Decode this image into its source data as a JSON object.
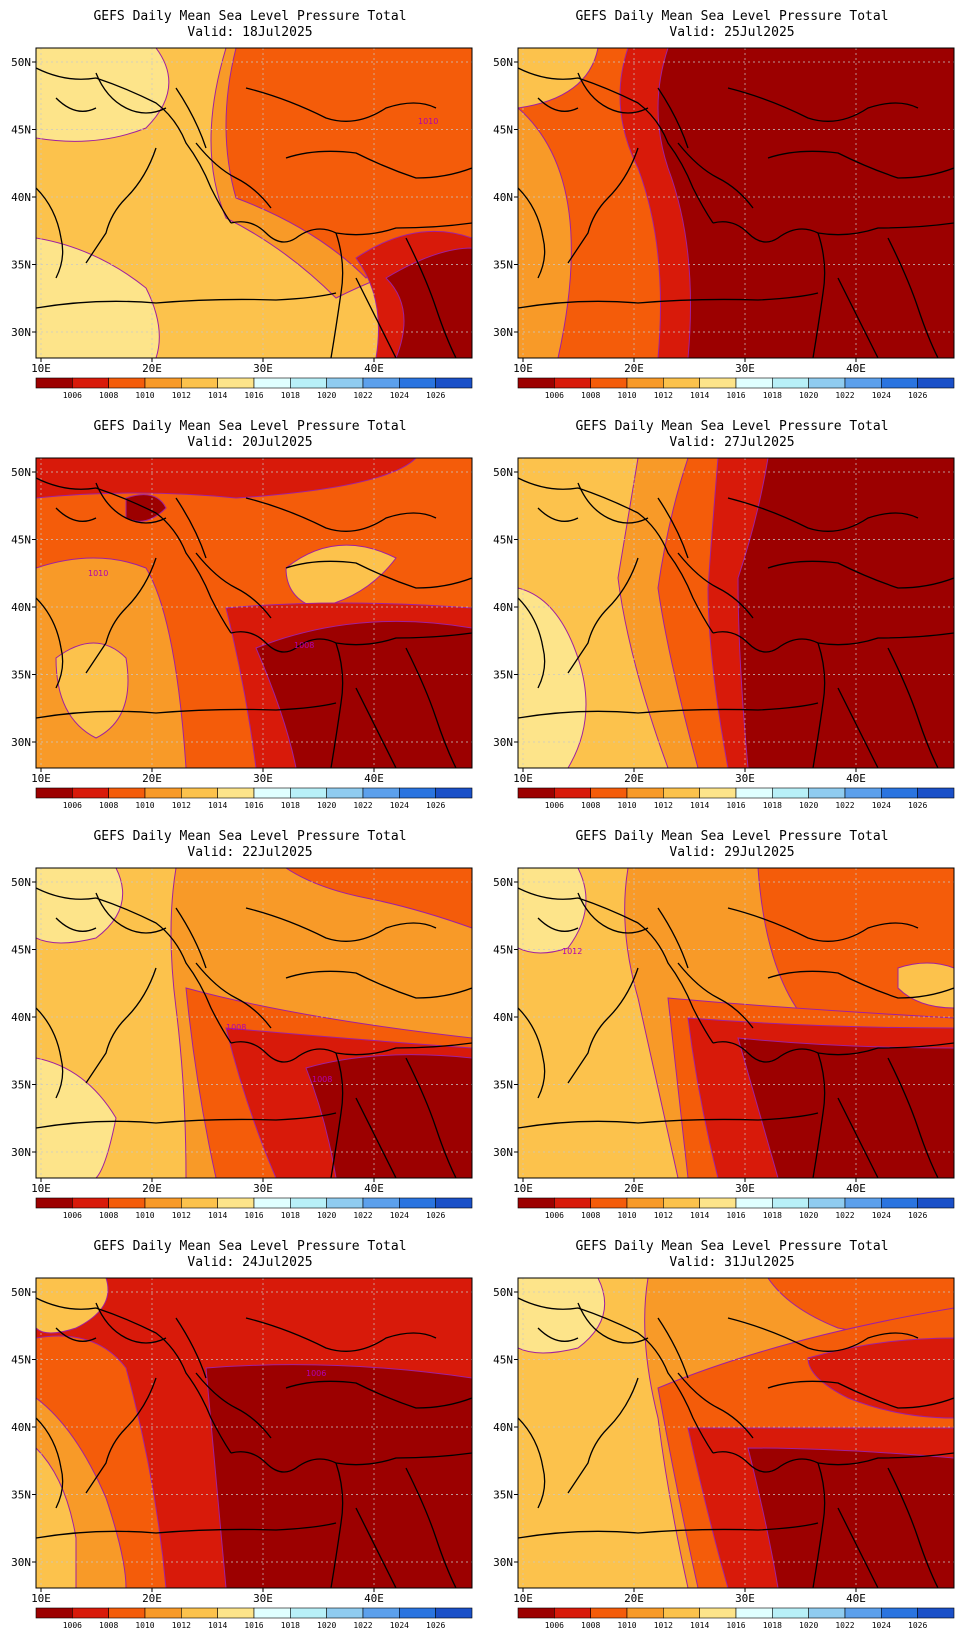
{
  "product": "GEFS Daily Mean Sea Level Pressure Total",
  "valid_prefix": "Valid:",
  "lat_labels": [
    "50N",
    "45N",
    "40N",
    "35N",
    "30N"
  ],
  "lon_labels": [
    "10E",
    "20E",
    "30E",
    "40E"
  ],
  "colorbar": {
    "levels": [
      "1006",
      "1008",
      "1010",
      "1012",
      "1014",
      "1016",
      "1018",
      "1020",
      "1022",
      "1024",
      "1026"
    ],
    "colors": [
      "#9c0000",
      "#d81a0a",
      "#f45c0a",
      "#f89a28",
      "#fcc24c",
      "#fde48a",
      "#e0ffff",
      "#b8f0f8",
      "#90ccf0",
      "#5ca0ec",
      "#2a74e0",
      "#1a50c8"
    ]
  },
  "colors": {
    "contour": "#a020a0",
    "coast": "#000000",
    "grid": "#c8c8c8"
  },
  "panels": [
    {
      "valid": "18Jul2025",
      "labels": [
        "1010"
      ]
    },
    {
      "valid": "25Jul2025",
      "labels": []
    },
    {
      "valid": "20Jul2025",
      "labels": [
        "1010",
        "1008"
      ]
    },
    {
      "valid": "27Jul2025",
      "labels": []
    },
    {
      "valid": "22Jul2025",
      "labels": [
        "1008",
        "1008"
      ]
    },
    {
      "valid": "29Jul2025",
      "labels": [
        "1012"
      ]
    },
    {
      "valid": "24Jul2025",
      "labels": [
        "1006"
      ]
    },
    {
      "valid": "31Jul2025",
      "labels": []
    }
  ]
}
